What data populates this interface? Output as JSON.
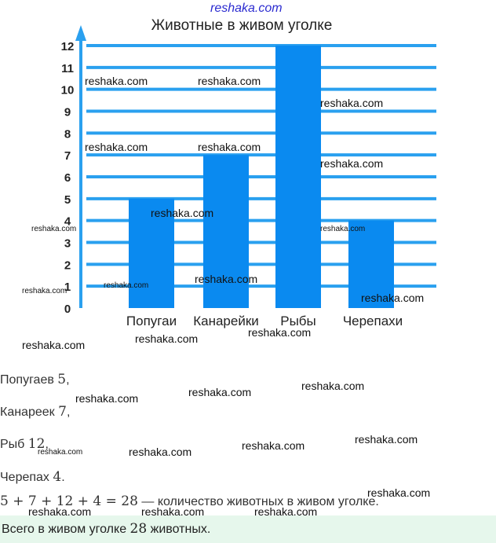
{
  "site_watermark": "reshaka.com",
  "chart_data": {
    "type": "bar",
    "title": "Животные в живом уголке",
    "categories": [
      "Попугаи",
      "Канарейки",
      "Рыбы",
      "Черепахи"
    ],
    "values": [
      5,
      7,
      12,
      4
    ],
    "xlabel": "",
    "ylabel": "",
    "ylim": [
      0,
      12
    ],
    "yticks": [
      0,
      1,
      2,
      3,
      4,
      5,
      6,
      7,
      8,
      9,
      10,
      11,
      12
    ],
    "grid": true,
    "bar_color": "#0a8af0",
    "grid_color": "#2aa0ef"
  },
  "solution": {
    "l1_text": "Попугаев",
    "l1_num": "5",
    "l1_punct": ",",
    "l2_text": "Канареек",
    "l2_num": "7",
    "l2_punct": ",",
    "l3_text": "Рыб",
    "l3_num": "12",
    "l3_punct": ",",
    "l4_text": "Черепах",
    "l4_num": "4",
    "l4_punct": ".",
    "equation_math": "5 + 7 + 12 + 4 = 28",
    "equation_text": " — количество животных в живом уголке.",
    "answer_prefix": "Всего в живом уголке",
    "answer_num": "28",
    "answer_suffix": "животных."
  }
}
